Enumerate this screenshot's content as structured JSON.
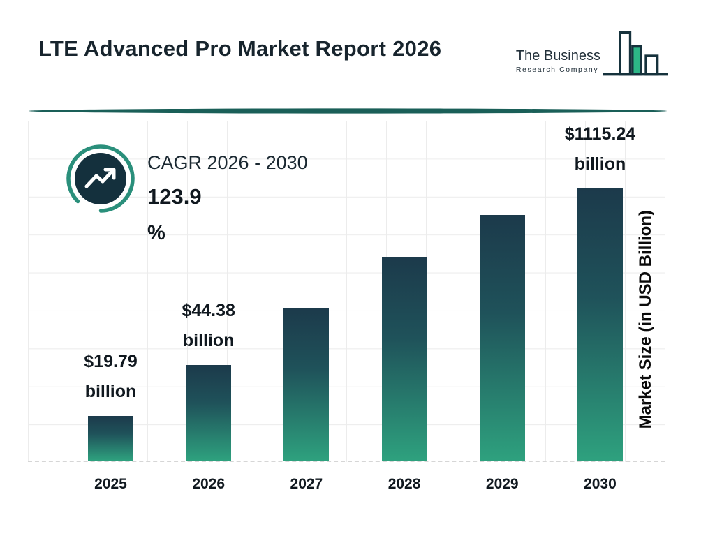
{
  "header": {
    "title": "LTE Advanced Pro Market Report 2026",
    "logo": {
      "name_line1": "The Business",
      "name_line2": "Research Company"
    }
  },
  "cagr": {
    "label": "CAGR 2026 - 2030",
    "value": "123.9",
    "unit": "%"
  },
  "chart_data": {
    "type": "bar",
    "title": "LTE Advanced Pro Market Report 2026",
    "categories": [
      "2025",
      "2026",
      "2027",
      "2028",
      "2029",
      "2030"
    ],
    "values": [
      19.79,
      44.38,
      null,
      null,
      null,
      1115.24
    ],
    "value_labels": [
      {
        "amount": "$19.79",
        "unit": "billion"
      },
      {
        "amount": "$44.38",
        "unit": "billion"
      },
      null,
      null,
      null,
      {
        "amount": "$1115.24",
        "unit": "billion"
      }
    ],
    "bar_heights_rel": [
      0.164,
      0.351,
      0.562,
      0.749,
      0.903,
      1.0
    ],
    "xlabel": "",
    "ylabel": "Market Size (in USD Billion)",
    "grid": true,
    "legend_position": "none",
    "colors": {
      "bar_top": "#1c3a4b",
      "bar_bottom": "#2ea17e",
      "grid": "#ececec",
      "divider": "#1a5f58",
      "ring": "#2a8f7b",
      "icon_bg": "#14303d",
      "logo_green": "#2db687",
      "logo_outline": "#16323c",
      "text_dark": "#10181f"
    }
  }
}
